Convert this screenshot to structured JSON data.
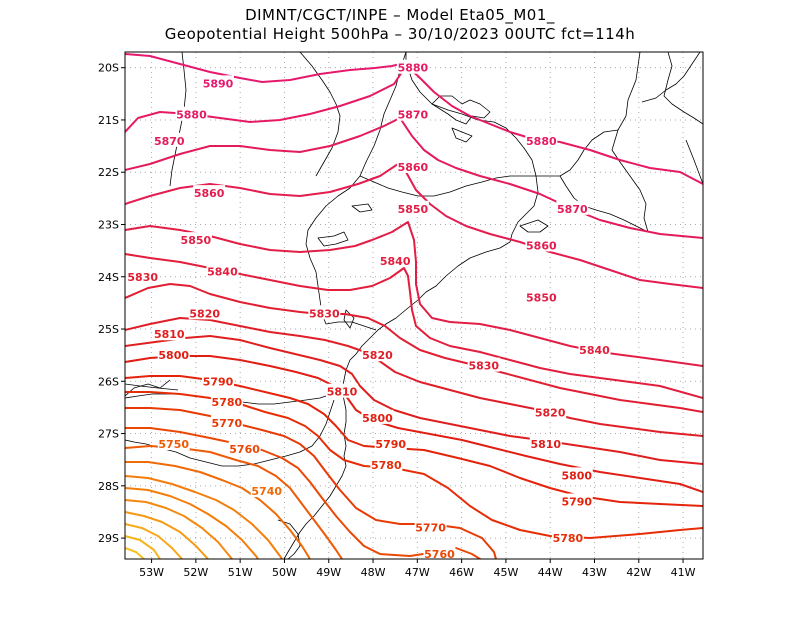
{
  "title_line1": "DIMNT/CGCT/INPE –  Model Eta05_M01_",
  "title_line2": "Geopotential Height 500hPa –  30/10/2023 00UTC fct=114h",
  "lat_ticks": [
    "20S",
    "21S",
    "22S",
    "23S",
    "24S",
    "25S",
    "26S",
    "27S",
    "28S",
    "29S"
  ],
  "lon_ticks": [
    "53W",
    "52W",
    "51W",
    "50W",
    "49W",
    "48W",
    "47W",
    "46W",
    "45W",
    "44W",
    "43W",
    "42W",
    "41W"
  ],
  "colors": {
    "c5890": "#e6196e",
    "c5880": "#e61a64",
    "c5870": "#e41b5a",
    "c5860": "#e31d50",
    "c5850": "#e21e46",
    "c5840": "#e21e3c",
    "c5830": "#e11e32",
    "c5820": "#e01e28",
    "c5810": "#e01e1e",
    "c5800": "#e11e14",
    "c5790": "#e4230a",
    "c5780": "#e62d06",
    "c5770": "#e83a05",
    "c5760": "#ea4805",
    "c5750": "#ee5a05",
    "c5740": "#f06a06",
    "c_low": "#f47d0a",
    "coast": "#000000",
    "grid": "#aaaaaa"
  },
  "contour_labels": [
    {
      "text": "5890",
      "lon": -51.5,
      "lat": -20.3
    },
    {
      "text": "5880",
      "lon": -47.1,
      "lat": -20.0
    },
    {
      "text": "5880",
      "lon": -52.1,
      "lat": -20.9
    },
    {
      "text": "5880",
      "lon": -44.2,
      "lat": -21.4
    },
    {
      "text": "5870",
      "lon": -47.1,
      "lat": -20.9
    },
    {
      "text": "5870",
      "lon": -52.6,
      "lat": -21.4
    },
    {
      "text": "5870",
      "lon": -43.5,
      "lat": -22.7
    },
    {
      "text": "5860",
      "lon": -47.1,
      "lat": -21.9
    },
    {
      "text": "5860",
      "lon": -51.7,
      "lat": -22.4
    },
    {
      "text": "5860",
      "lon": -44.2,
      "lat": -23.4
    },
    {
      "text": "5850",
      "lon": -47.1,
      "lat": -22.7
    },
    {
      "text": "5850",
      "lon": -52.0,
      "lat": -23.3
    },
    {
      "text": "5850",
      "lon": -44.2,
      "lat": -24.4
    },
    {
      "text": "5840",
      "lon": -47.5,
      "lat": -23.7
    },
    {
      "text": "5840",
      "lon": -51.4,
      "lat": -23.9
    },
    {
      "text": "5840",
      "lon": -43.0,
      "lat": -25.4
    },
    {
      "text": "5830",
      "lon": -53.2,
      "lat": -24.0
    },
    {
      "text": "5830",
      "lon": -49.1,
      "lat": -24.7
    },
    {
      "text": "5830",
      "lon": -45.5,
      "lat": -25.7
    },
    {
      "text": "5820",
      "lon": -51.8,
      "lat": -24.7
    },
    {
      "text": "5820",
      "lon": -47.9,
      "lat": -25.5
    },
    {
      "text": "5820",
      "lon": -44.0,
      "lat": -26.6
    },
    {
      "text": "5810",
      "lon": -52.6,
      "lat": -25.1
    },
    {
      "text": "5810",
      "lon": -48.7,
      "lat": -26.2
    },
    {
      "text": "5810",
      "lon": -44.1,
      "lat": -27.2
    },
    {
      "text": "5800",
      "lon": -52.5,
      "lat": -25.5
    },
    {
      "text": "5800",
      "lon": -47.9,
      "lat": -26.7
    },
    {
      "text": "5800",
      "lon": -43.4,
      "lat": -27.8
    },
    {
      "text": "5790",
      "lon": -51.5,
      "lat": -26.0
    },
    {
      "text": "5790",
      "lon": -47.6,
      "lat": -27.2
    },
    {
      "text": "5790",
      "lon": -43.4,
      "lat": -28.3
    },
    {
      "text": "5780",
      "lon": -51.3,
      "lat": -26.4
    },
    {
      "text": "5780",
      "lon": -47.7,
      "lat": -27.6
    },
    {
      "text": "5780",
      "lon": -43.6,
      "lat": -29.0
    },
    {
      "text": "5770",
      "lon": -51.3,
      "lat": -26.8
    },
    {
      "text": "5770",
      "lon": -46.7,
      "lat": -28.8
    },
    {
      "text": "5760",
      "lon": -50.9,
      "lat": -27.3
    },
    {
      "text": "5760",
      "lon": -46.5,
      "lat": -29.3
    },
    {
      "text": "5750",
      "lon": -52.5,
      "lat": -27.2
    },
    {
      "text": "5740",
      "lon": -50.4,
      "lat": -28.1
    }
  ]
}
